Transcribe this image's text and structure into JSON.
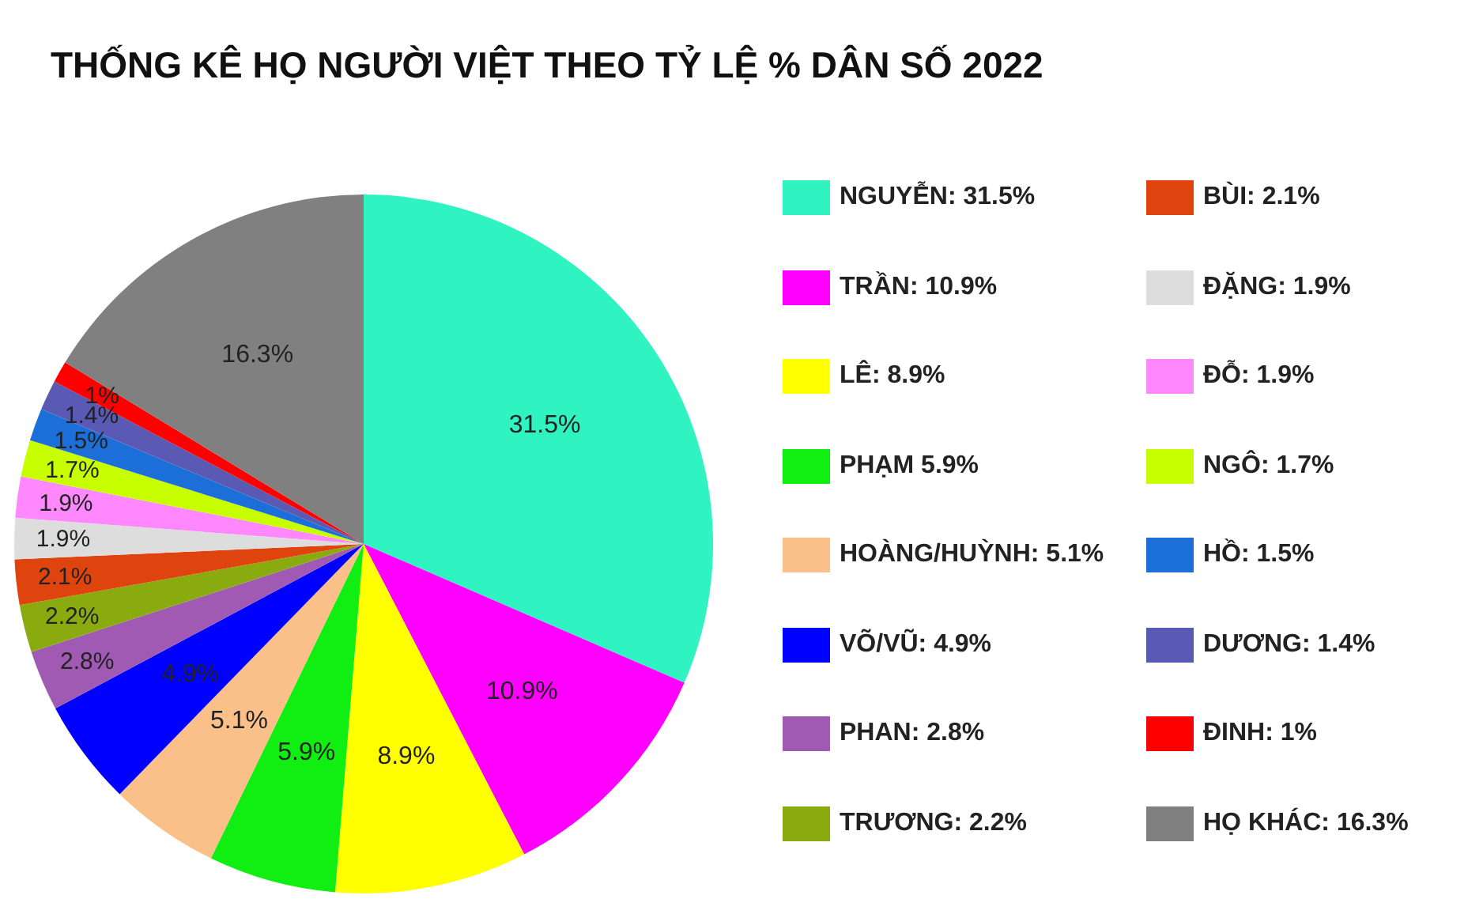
{
  "chart_data": {
    "type": "pie",
    "title": "THỐNG KÊ HỌ NGƯỜI VIỆT THEO TỶ LỆ % DÂN SỐ 2022",
    "categories": [
      "NGUYỄN: 31.5%",
      "TRẦN: 10.9%",
      "LÊ: 8.9%",
      "PHẠM 5.9%",
      "HOÀNG/HUỲNH: 5.1%",
      "VÕ/VŨ: 4.9%",
      "PHAN: 2.8%",
      "TRƯƠNG: 2.2%",
      "BÙI: 2.1%",
      "ĐẶNG: 1.9%",
      "ĐỖ: 1.9%",
      "NGÔ: 1.7%",
      "HỒ: 1.5%",
      "DƯƠNG: 1.4%",
      "ĐINH: 1%",
      "HỌ KHÁC: 16.3%"
    ],
    "values": [
      31.5,
      10.9,
      8.9,
      5.9,
      5.1,
      4.9,
      2.8,
      2.2,
      2.1,
      1.9,
      1.9,
      1.7,
      1.5,
      1.4,
      1,
      16.3
    ],
    "value_labels": [
      "31.5%",
      "10.9%",
      "8.9%",
      "5.9%",
      "5.1%",
      "4.9%",
      "2.8%",
      "2.2%",
      "2.1%",
      "1.9%",
      "1.9%",
      "1.7%",
      "1.5%",
      "1.4%",
      "1%",
      "16.3%"
    ],
    "colors": [
      "#2ff3c0",
      "#ff00ff",
      "#ffff00",
      "#11ee11",
      "#fbc08a",
      "#0000ff",
      "#a05ab4",
      "#8aab0f",
      "#e0440e",
      "#dddddd",
      "#ff88ff",
      "#c8ff00",
      "#1c6fd8",
      "#5a5ab4",
      "#ff0000",
      "#808080"
    ],
    "legend": "right"
  }
}
